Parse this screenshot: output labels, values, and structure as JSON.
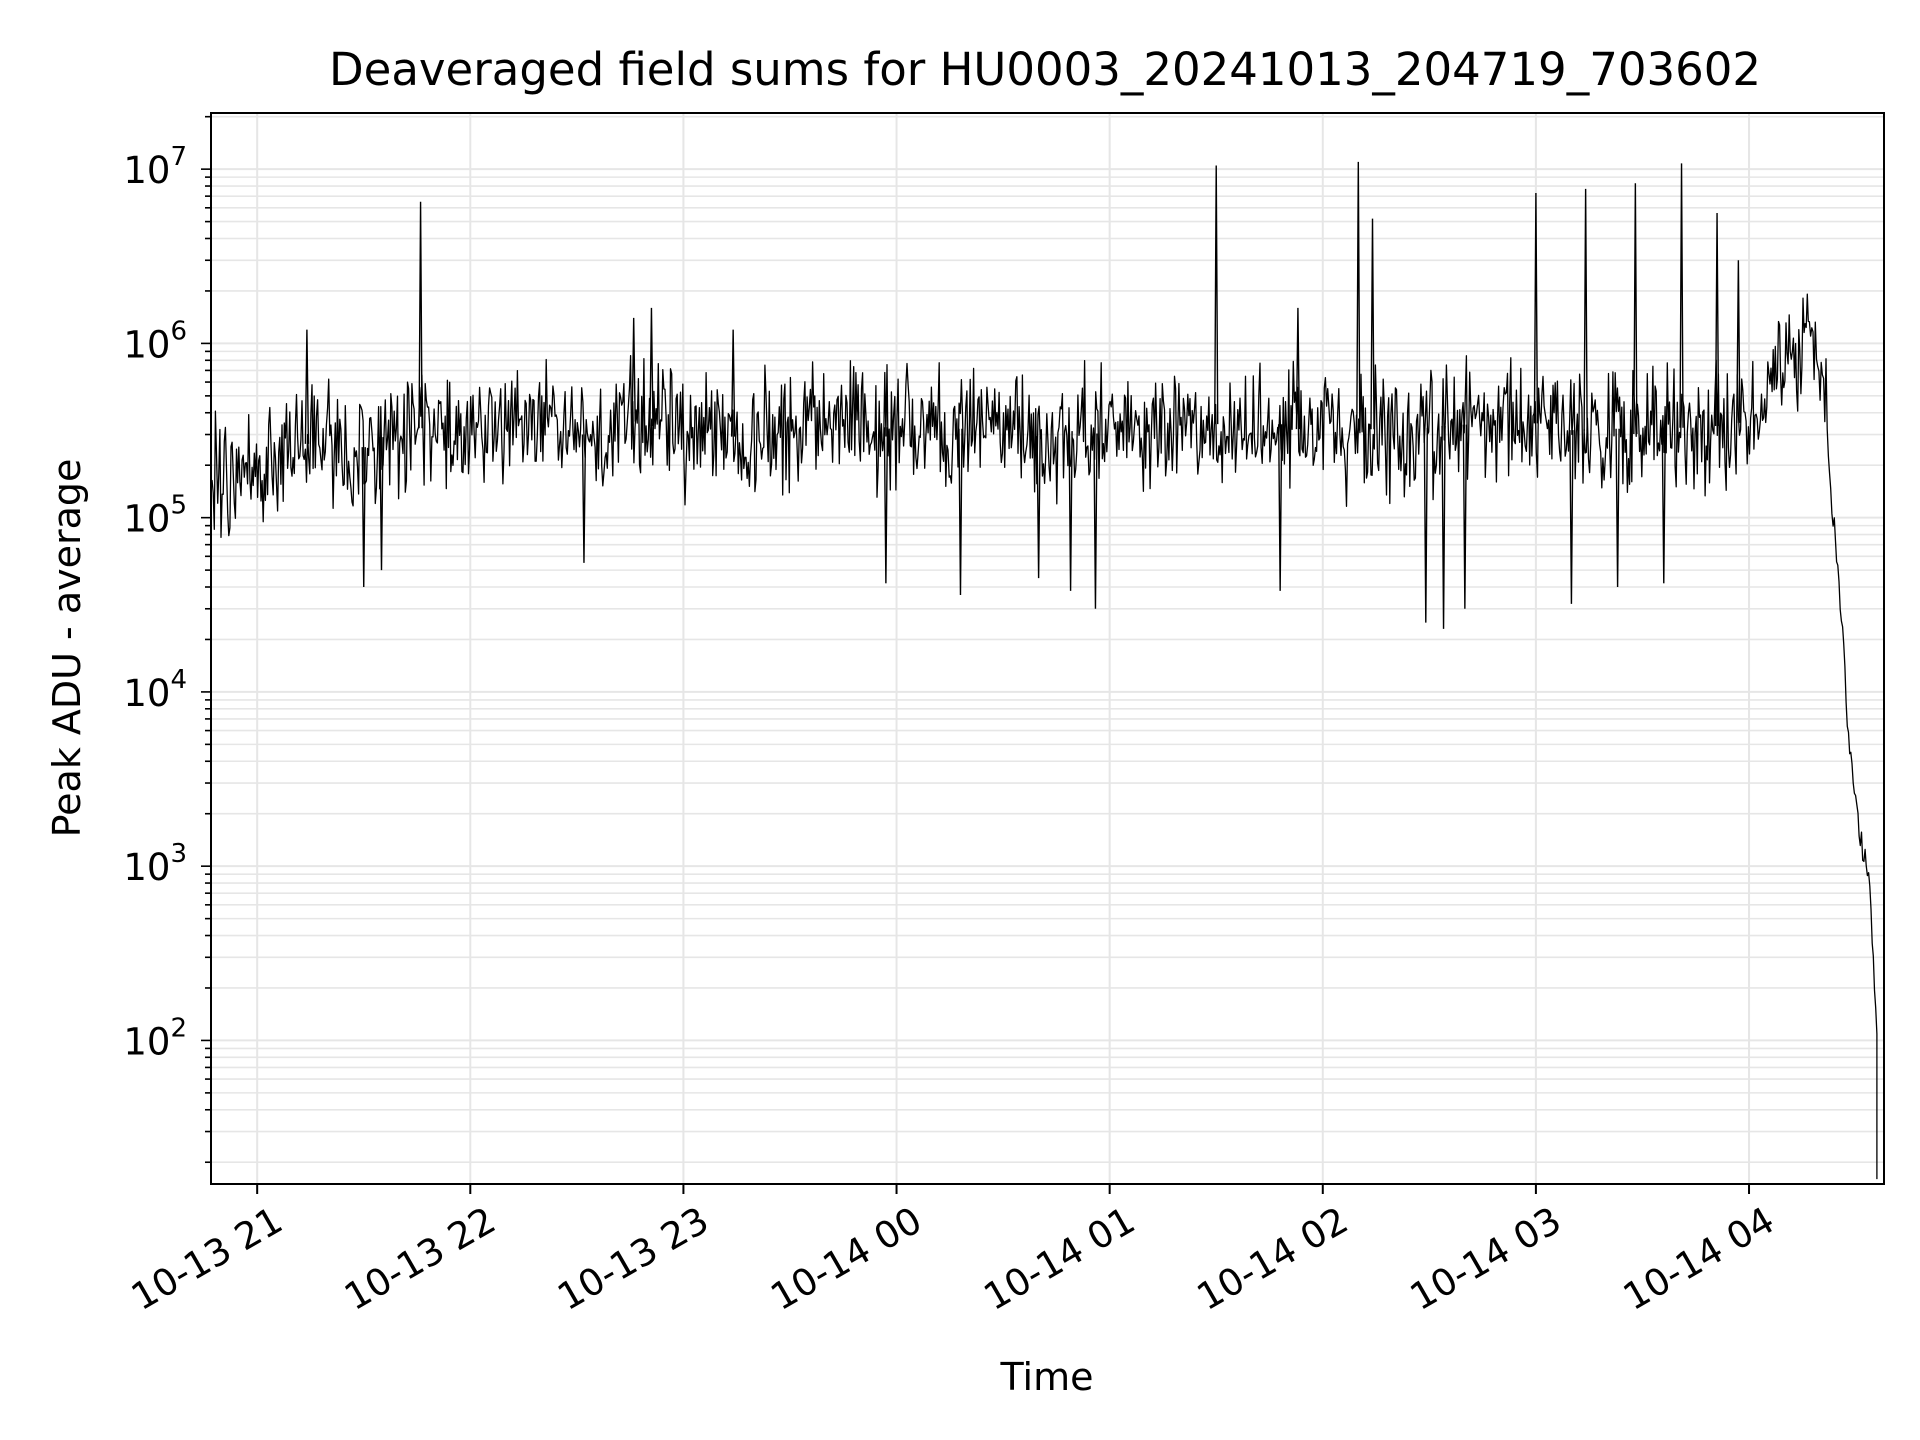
{
  "chart_data": {
    "type": "line",
    "title": "Deaveraged field sums for HU0003_20241013_204719_703602",
    "xlabel": "Time",
    "ylabel": "Peak ADU - average",
    "yscale": "log",
    "grid": true,
    "line_color": "#000000",
    "grid_color": "#e6e6e6",
    "xlim": [
      "2024-10-13 20:47",
      "2024-10-14 04:38"
    ],
    "ylim": [
      15,
      21000000
    ],
    "x_ticks": [
      {
        "time": "2024-10-13 21:00",
        "label": "10-13 21"
      },
      {
        "time": "2024-10-13 22:00",
        "label": "10-13 22"
      },
      {
        "time": "2024-10-13 23:00",
        "label": "10-13 23"
      },
      {
        "time": "2024-10-14 00:00",
        "label": "10-14 00"
      },
      {
        "time": "2024-10-14 01:00",
        "label": "10-14 01"
      },
      {
        "time": "2024-10-14 02:00",
        "label": "10-14 02"
      },
      {
        "time": "2024-10-14 03:00",
        "label": "10-14 03"
      },
      {
        "time": "2024-10-14 04:00",
        "label": "10-14 04"
      }
    ],
    "y_ticks": [
      {
        "value": 100,
        "base": "10",
        "exp": "2"
      },
      {
        "value": 1000,
        "base": "10",
        "exp": "3"
      },
      {
        "value": 10000,
        "base": "10",
        "exp": "4"
      },
      {
        "value": 100000,
        "base": "10",
        "exp": "5"
      },
      {
        "value": 1000000,
        "base": "10",
        "exp": "6"
      },
      {
        "value": 10000000,
        "base": "10",
        "exp": "7"
      }
    ],
    "series": [
      {
        "points": [
          [
            "2024-10-13 20:47",
            180000
          ],
          [
            "2024-10-13 20:52",
            150000
          ],
          [
            "2024-10-13 20:57",
            200000
          ],
          [
            "2024-10-13 21:02",
            170000
          ],
          [
            "2024-10-13 21:07",
            260000
          ],
          [
            "2024-10-13 21:12",
            250000
          ],
          [
            "2024-10-13 21:17",
            290000
          ],
          [
            "2024-10-13 21:22",
            240000
          ],
          [
            "2024-10-13 21:27",
            260000
          ],
          [
            "2024-10-13 21:32",
            250000
          ],
          [
            "2024-10-13 21:37",
            320000
          ],
          [
            "2024-10-13 21:42",
            350000
          ],
          [
            "2024-10-13 21:47",
            320000
          ],
          [
            "2024-10-13 21:52",
            340000
          ],
          [
            "2024-10-13 21:57",
            330000
          ],
          [
            "2024-10-13 22:02",
            310000
          ],
          [
            "2024-10-13 22:07",
            330000
          ],
          [
            "2024-10-13 22:12",
            300000
          ],
          [
            "2024-10-13 22:17",
            340000
          ],
          [
            "2024-10-13 22:22",
            350000
          ],
          [
            "2024-10-13 22:27",
            320000
          ],
          [
            "2024-10-13 22:32",
            300000
          ],
          [
            "2024-10-13 22:37",
            330000
          ],
          [
            "2024-10-13 22:42",
            340000
          ],
          [
            "2024-10-13 22:47",
            360000
          ],
          [
            "2024-10-13 22:52",
            330000
          ],
          [
            "2024-10-13 22:57",
            310000
          ],
          [
            "2024-10-13 23:02",
            300000
          ],
          [
            "2024-10-13 23:07",
            290000
          ],
          [
            "2024-10-13 23:12",
            300000
          ],
          [
            "2024-10-13 23:17",
            280000
          ],
          [
            "2024-10-13 23:22",
            310000
          ],
          [
            "2024-10-13 23:27",
            300000
          ],
          [
            "2024-10-13 23:32",
            330000
          ],
          [
            "2024-10-13 23:37",
            340000
          ],
          [
            "2024-10-13 23:42",
            320000
          ],
          [
            "2024-10-13 23:47",
            350000
          ],
          [
            "2024-10-13 23:52",
            360000
          ],
          [
            "2024-10-13 23:57",
            330000
          ],
          [
            "2024-10-14 00:02",
            340000
          ],
          [
            "2024-10-14 00:07",
            350000
          ],
          [
            "2024-10-14 00:12",
            330000
          ],
          [
            "2024-10-14 00:17",
            320000
          ],
          [
            "2024-10-14 00:22",
            340000
          ],
          [
            "2024-10-14 00:27",
            310000
          ],
          [
            "2024-10-14 00:32",
            330000
          ],
          [
            "2024-10-14 00:37",
            300000
          ],
          [
            "2024-10-14 00:42",
            290000
          ],
          [
            "2024-10-14 00:47",
            310000
          ],
          [
            "2024-10-14 00:52",
            320000
          ],
          [
            "2024-10-14 00:57",
            300000
          ],
          [
            "2024-10-14 01:02",
            330000
          ],
          [
            "2024-10-14 01:07",
            350000
          ],
          [
            "2024-10-14 01:12",
            340000
          ],
          [
            "2024-10-14 01:17",
            360000
          ],
          [
            "2024-10-14 01:22",
            330000
          ],
          [
            "2024-10-14 01:27",
            350000
          ],
          [
            "2024-10-14 01:32",
            340000
          ],
          [
            "2024-10-14 01:37",
            330000
          ],
          [
            "2024-10-14 01:42",
            340000
          ],
          [
            "2024-10-14 01:47",
            350000
          ],
          [
            "2024-10-14 01:52",
            320000
          ],
          [
            "2024-10-14 01:57",
            330000
          ],
          [
            "2024-10-14 02:02",
            340000
          ],
          [
            "2024-10-14 02:07",
            300000
          ],
          [
            "2024-10-14 02:12",
            330000
          ],
          [
            "2024-10-14 02:17",
            310000
          ],
          [
            "2024-10-14 02:22",
            300000
          ],
          [
            "2024-10-14 02:27",
            320000
          ],
          [
            "2024-10-14 02:32",
            340000
          ],
          [
            "2024-10-14 02:37",
            330000
          ],
          [
            "2024-10-14 02:42",
            350000
          ],
          [
            "2024-10-14 02:47",
            320000
          ],
          [
            "2024-10-14 02:52",
            340000
          ],
          [
            "2024-10-14 02:57",
            360000
          ],
          [
            "2024-10-14 03:02",
            340000
          ],
          [
            "2024-10-14 03:07",
            330000
          ],
          [
            "2024-10-14 03:12",
            310000
          ],
          [
            "2024-10-14 03:17",
            320000
          ],
          [
            "2024-10-14 03:22",
            330000
          ],
          [
            "2024-10-14 03:27",
            300000
          ],
          [
            "2024-10-14 03:32",
            310000
          ],
          [
            "2024-10-14 03:37",
            320000
          ],
          [
            "2024-10-14 03:42",
            330000
          ],
          [
            "2024-10-14 03:47",
            320000
          ],
          [
            "2024-10-14 03:52",
            340000
          ],
          [
            "2024-10-14 03:57",
            350000
          ],
          [
            "2024-10-14 04:02",
            380000
          ],
          [
            "2024-10-14 04:05",
            500000
          ],
          [
            "2024-10-14 04:08",
            800000
          ],
          [
            "2024-10-14 04:11",
            850000
          ],
          [
            "2024-10-14 04:14",
            900000
          ],
          [
            "2024-10-14 04:17",
            1100000
          ],
          [
            "2024-10-14 04:19",
            900000
          ],
          [
            "2024-10-14 04:21",
            700000
          ],
          [
            "2024-10-14 04:22",
            300000
          ],
          [
            "2024-10-14 04:23",
            150000
          ],
          [
            "2024-10-14 04:24",
            80000
          ],
          [
            "2024-10-14 04:25",
            50000
          ],
          [
            "2024-10-14 04:26",
            25000
          ],
          [
            "2024-10-14 04:27",
            12000
          ],
          [
            "2024-10-14 04:28",
            6000
          ],
          [
            "2024-10-14 04:29",
            3500
          ],
          [
            "2024-10-14 04:30",
            2500
          ],
          [
            "2024-10-14 04:31",
            1800
          ],
          [
            "2024-10-14 04:32",
            1300
          ],
          [
            "2024-10-14 04:33",
            1100
          ],
          [
            "2024-10-14 04:34",
            700
          ],
          [
            "2024-10-14 04:35",
            300
          ],
          [
            "2024-10-14 04:36",
            100
          ],
          [
            "2024-10-14 04:36",
            16
          ]
        ],
        "spikes": [
          [
            "2024-10-13 21:14",
            1200000
          ],
          [
            "2024-10-13 21:46",
            6500000
          ],
          [
            "2024-10-13 22:46",
            1400000
          ],
          [
            "2024-10-13 22:51",
            1600000
          ],
          [
            "2024-10-13 23:14",
            1200000
          ],
          [
            "2024-10-14 01:30",
            10500000
          ],
          [
            "2024-10-14 01:53",
            1600000
          ],
          [
            "2024-10-14 02:10",
            11000000
          ],
          [
            "2024-10-14 02:14",
            5200000
          ],
          [
            "2024-10-14 03:00",
            7300000
          ],
          [
            "2024-10-14 03:14",
            7700000
          ],
          [
            "2024-10-14 03:28",
            8300000
          ],
          [
            "2024-10-14 03:41",
            10800000
          ],
          [
            "2024-10-14 03:51",
            5600000
          ],
          [
            "2024-10-14 03:57",
            3000000
          ]
        ],
        "dips": [
          [
            "2024-10-13 21:30",
            40000
          ],
          [
            "2024-10-13 21:35",
            50000
          ],
          [
            "2024-10-13 22:32",
            55000
          ],
          [
            "2024-10-14 00:18",
            36000
          ],
          [
            "2024-10-14 00:49",
            38000
          ],
          [
            "2024-10-14 00:56",
            30000
          ],
          [
            "2024-10-14 02:29",
            25000
          ],
          [
            "2024-10-14 02:34",
            23000
          ],
          [
            "2024-10-14 02:40",
            30000
          ],
          [
            "2024-10-14 03:10",
            32000
          ],
          [
            "2024-10-14 03:23",
            40000
          ],
          [
            "2024-10-14 03:36",
            42000
          ],
          [
            "2024-10-14 01:48",
            38000
          ],
          [
            "2024-10-14 00:40",
            45000
          ],
          [
            "2024-10-13 23:57",
            42000
          ]
        ]
      }
    ]
  }
}
